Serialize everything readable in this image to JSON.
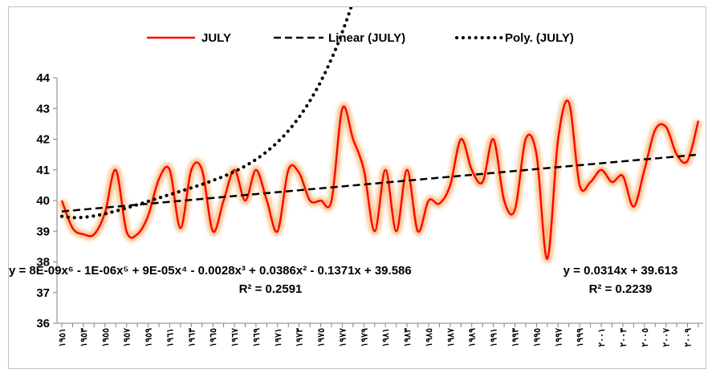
{
  "chart_data": {
    "type": "line",
    "title": "",
    "xlabel": "",
    "ylabel": "",
    "ylim": [
      36,
      44
    ],
    "yticks": [
      36,
      37,
      38,
      39,
      40,
      41,
      42,
      43,
      44
    ],
    "x_tick_labels": [
      "١٩٥١",
      "١٩٥٣",
      "١٩٥٥",
      "١٩٥٧",
      "١٩٥٩",
      "١٩٦١",
      "١٩٦٣",
      "١٩٦٥",
      "١٩٦٧",
      "١٩٦٩",
      "١٩٧١",
      "١٩٧٣",
      "١٩٧٥",
      "١٩٧٧",
      "١٩٧٩",
      "١٩٨١",
      "١٩٨٣",
      "١٩٨٥",
      "١٩٨٧",
      "١٩٨٩",
      "١٩٩١",
      "١٩٩٣",
      "١٩٩٥",
      "١٩٩٧",
      "١٩٩٩",
      "٢٠٠١",
      "٢٠٠٣",
      "٢٠٠٥",
      "٢٠٠٧",
      "٢٠٠٩"
    ],
    "grid": false,
    "legend_position": "top",
    "series": [
      {
        "name": "JULY",
        "style": "solid",
        "color": "#ff0000",
        "glow_color": "#f9b97a",
        "values": [
          40.0,
          39.1,
          38.9,
          38.9,
          39.6,
          41.0,
          39.0,
          38.9,
          39.5,
          40.7,
          41.0,
          39.1,
          41.0,
          41.0,
          39.0,
          40.0,
          41.0,
          40.0,
          41.0,
          40.0,
          39.0,
          41.0,
          40.9,
          40.0,
          40.0,
          40.0,
          43.0,
          42.0,
          41.0,
          39.0,
          41.0,
          39.0,
          41.0,
          39.0,
          40.0,
          39.9,
          40.5,
          42.0,
          41.0,
          40.6,
          42.0,
          40.0,
          39.7,
          42.0,
          41.5,
          38.1,
          42.0,
          43.2,
          40.5,
          40.6,
          41.0,
          40.6,
          40.8,
          39.8,
          41.0,
          42.3,
          42.4,
          41.5,
          41.3,
          42.6
        ]
      },
      {
        "name": "Linear (JULY)",
        "style": "dashed",
        "color": "#000000",
        "slope": 0.0314,
        "intercept": 39.613
      },
      {
        "name": "Poly. (JULY)",
        "style": "dotted",
        "color": "#000000",
        "coefficients_x6_to_x0": [
          8e-09,
          -1e-06,
          9e-05,
          -0.0028,
          0.0386,
          -0.1371,
          39.586
        ]
      }
    ],
    "annotations": {
      "poly_equation": "y = 8E-09x⁶ - 1E-06x⁵ + 9E-05x⁴ - 0.0028x³ + 0.0386x² - 0.1371x + 39.586",
      "poly_r2": "R² = 0.2591",
      "linear_equation": "y = 0.0314x + 39.613",
      "linear_r2": "R² = 0.2239"
    }
  }
}
